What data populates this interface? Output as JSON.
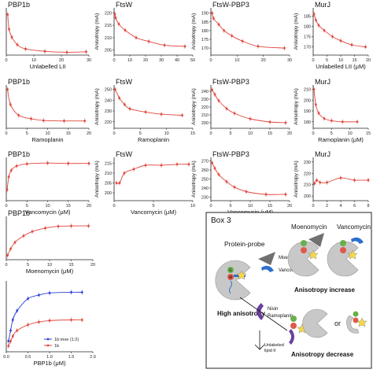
{
  "chart_data": [
    {
      "id": "p1",
      "type": "scatter",
      "title": "PBP1b",
      "xlabel": "Unlabelled LII",
      "ylabel": "",
      "xticks": [
        0,
        10,
        20,
        30
      ],
      "yticks": [],
      "xlim": [
        0,
        30
      ],
      "ylim": [
        0,
        1
      ],
      "series": [
        {
          "color": "#e0463c",
          "x": [
            0.5,
            1,
            2,
            4,
            7,
            14,
            22,
            29
          ],
          "y": [
            0.86,
            0.55,
            0.38,
            0.22,
            0.13,
            0.08,
            0.06,
            0.07
          ],
          "fit": true
        }
      ]
    },
    {
      "id": "p2",
      "type": "scatter",
      "title": "FtsW",
      "xlabel": "",
      "ylabel": "Anisotropy (mA)",
      "xticks": [
        0,
        10,
        20,
        30,
        40,
        50
      ],
      "yticks": [
        205,
        210,
        215,
        220
      ],
      "xlim": [
        0,
        50
      ],
      "ylim": [
        203,
        222
      ],
      "series": [
        {
          "color": "#e0463c",
          "x": [
            0.5,
            1,
            3,
            7,
            14,
            22,
            32,
            45
          ],
          "y": [
            219.5,
            218,
            215.5,
            213,
            210,
            208.5,
            207,
            206.5
          ],
          "fit": true
        }
      ]
    },
    {
      "id": "p3",
      "type": "scatter",
      "title": "FtsW-PBP3",
      "xlabel": "",
      "ylabel": "Anisotropy (mA)",
      "xticks": [
        0,
        10,
        20,
        30
      ],
      "yticks": [
        170,
        175,
        180,
        185,
        190
      ],
      "xlim": [
        0,
        30
      ],
      "ylim": [
        166,
        193
      ],
      "series": [
        {
          "color": "#e0463c",
          "x": [
            0.5,
            1,
            3,
            5,
            8,
            12,
            18,
            28
          ],
          "y": [
            190,
            187,
            183.5,
            180,
            177,
            174,
            171,
            170
          ],
          "fit": true
        }
      ]
    },
    {
      "id": "p4",
      "type": "scatter",
      "title": "MurJ",
      "xlabel": "Unlabelled LII (μM)",
      "ylabel": "Anisotropy (mA)",
      "xticks": [
        0,
        5,
        10,
        15,
        20
      ],
      "yticks": [
        170,
        175,
        180,
        185
      ],
      "xlim": [
        0,
        20
      ],
      "ylim": [
        166,
        189
      ],
      "series": [
        {
          "color": "#e0463c",
          "x": [
            0.3,
            1,
            2,
            4,
            7,
            10,
            14,
            19
          ],
          "y": [
            186,
            183,
            180.5,
            178,
            175,
            173,
            171,
            170
          ],
          "fit": true
        }
      ]
    },
    {
      "id": "p5",
      "type": "scatter",
      "title": "PBP1b",
      "xlabel": "Ramoplanin",
      "ylabel": "",
      "xticks": [
        0,
        5,
        10,
        15,
        20
      ],
      "yticks": [],
      "xlim": [
        0,
        20
      ],
      "ylim": [
        0,
        1
      ],
      "series": [
        {
          "color": "#e0463c",
          "x": [
            0.3,
            1,
            3,
            6,
            9,
            14,
            19
          ],
          "y": [
            0.9,
            0.55,
            0.3,
            0.22,
            0.18,
            0.17,
            0.17
          ],
          "fit": true
        }
      ]
    },
    {
      "id": "p6",
      "type": "scatter",
      "title": "FtsW",
      "xlabel": "Ramoplanin",
      "ylabel": "Anisotropy (mA)",
      "xticks": [
        0,
        5,
        10,
        15
      ],
      "yticks": [
        220,
        230,
        240,
        250
      ],
      "xlim": [
        0,
        15
      ],
      "ylim": [
        214,
        254
      ],
      "series": [
        {
          "color": "#e0463c",
          "x": [
            0.2,
            1,
            2,
            3,
            6,
            9,
            13
          ],
          "y": [
            250,
            242,
            236,
            232,
            229,
            227,
            226
          ],
          "fit": true
        }
      ]
    },
    {
      "id": "p7",
      "type": "scatter",
      "title": "FtsW-PBP3",
      "xlabel": "",
      "ylabel": "Anisotropy (mA)",
      "xticks": [
        0,
        5,
        10,
        15,
        20
      ],
      "yticks": [
        200,
        210,
        220,
        230,
        240
      ],
      "xlim": [
        0,
        20
      ],
      "ylim": [
        193,
        248
      ],
      "series": [
        {
          "color": "#e0463c",
          "x": [
            0.3,
            1,
            2,
            4,
            6,
            10,
            15,
            19
          ],
          "y": [
            242,
            236,
            228,
            218,
            212,
            205,
            201,
            200
          ],
          "fit": true
        }
      ]
    },
    {
      "id": "p8",
      "type": "scatter",
      "title": "MurJ",
      "xlabel": "Ramoplanin (μM)",
      "ylabel": "Anisotropy (mA)",
      "xticks": [
        0,
        5,
        10,
        15
      ],
      "yticks": [
        180,
        190,
        200,
        210
      ],
      "xlim": [
        0,
        15
      ],
      "ylim": [
        174,
        214
      ],
      "series": [
        {
          "color": "#e0463c",
          "x": [
            0.2,
            0.7,
            1.5,
            3,
            5,
            8,
            12
          ],
          "y": [
            210,
            196,
            188,
            183,
            181,
            180,
            180
          ],
          "fit": true
        }
      ]
    },
    {
      "id": "p9",
      "type": "scatter",
      "title": "PBP1b",
      "xlabel": "Vancomycin (μM)",
      "ylabel": "",
      "xticks": [
        0,
        5,
        10,
        15,
        20
      ],
      "yticks": [],
      "xlim": [
        0,
        20
      ],
      "ylim": [
        0,
        1
      ],
      "series": [
        {
          "color": "#e0463c",
          "x": [
            0.2,
            0.6,
            1.2,
            2.5,
            5,
            10,
            15,
            20
          ],
          "y": [
            0.25,
            0.55,
            0.7,
            0.8,
            0.85,
            0.87,
            0.86,
            0.86
          ],
          "fit": true
        }
      ]
    },
    {
      "id": "p10",
      "type": "scatter",
      "title": "FtsW",
      "xlabel": "Vancomycin (μM)",
      "ylabel": "Anisotropy (mA)",
      "xticks": [
        0,
        5,
        10
      ],
      "yticks": [
        200,
        205,
        210,
        215
      ],
      "xlim": [
        0,
        10
      ],
      "ylim": [
        196,
        218
      ],
      "series": [
        {
          "color": "#e0463c",
          "x": [
            0.3,
            0.7,
            1.3,
            2.5,
            4,
            6,
            8,
            9.5
          ],
          "y": [
            205,
            205,
            210,
            212,
            214,
            214,
            214.5,
            214.5
          ],
          "fit": true
        }
      ]
    },
    {
      "id": "p11",
      "type": "scatter",
      "title": "FtsW-PBP3",
      "xlabel": "Vancomycin (μM)",
      "ylabel": "Anisotropy (mA)",
      "xticks": [
        0,
        5,
        10,
        15,
        20
      ],
      "yticks": [
        230,
        240,
        250,
        260,
        270
      ],
      "xlim": [
        0,
        20
      ],
      "ylim": [
        226,
        274
      ],
      "series": [
        {
          "color": "#e0463c",
          "x": [
            0.3,
            1,
            2,
            4,
            6,
            9,
            14,
            19
          ],
          "y": [
            268,
            262,
            255,
            247,
            241,
            236,
            233,
            233
          ],
          "fit": true
        }
      ]
    },
    {
      "id": "p12",
      "type": "line",
      "title": "MurJ",
      "xlabel": "",
      "ylabel": "Anisotropy (mA)",
      "xticks": [
        0,
        2,
        4,
        6,
        8
      ],
      "yticks": [
        200,
        210,
        220,
        230
      ],
      "xlim": [
        0,
        8
      ],
      "ylim": [
        196,
        234
      ],
      "series": [
        {
          "color": "#e0463c",
          "x": [
            0.2,
            0.5,
            1,
            2,
            4,
            6,
            8
          ],
          "y": [
            211,
            214,
            212,
            212,
            216,
            214,
            214
          ],
          "fit": false
        }
      ]
    },
    {
      "id": "p13",
      "type": "scatter",
      "title": "PBP1b",
      "xlabel": "Moenomycin (μM)",
      "ylabel": "",
      "xticks": [
        0,
        5,
        10,
        15,
        20
      ],
      "yticks": [],
      "xlim": [
        0,
        20
      ],
      "ylim": [
        0,
        1
      ],
      "series": [
        {
          "color": "#e0463c",
          "x": [
            0.3,
            1,
            2,
            4,
            6,
            9,
            12,
            15,
            19
          ],
          "y": [
            0.1,
            0.25,
            0.4,
            0.55,
            0.65,
            0.73,
            0.77,
            0.78,
            0.78
          ],
          "fit": true
        }
      ]
    },
    {
      "id": "p14",
      "type": "scatter",
      "title": "",
      "xlabel": "PBP1b (μM)",
      "ylabel": "",
      "xticks": [
        0,
        0.5,
        1,
        1.5,
        2
      ],
      "xticklabels": [
        "0.0",
        "0.5",
        "1.0",
        "1.5",
        "2.0"
      ],
      "yticks": [],
      "xlim": [
        0,
        2
      ],
      "ylim": [
        0,
        1
      ],
      "legend": "bottom-right",
      "series": [
        {
          "name": "1b:moe (1:2)",
          "color": "#2b3fd6",
          "x": [
            0.05,
            0.1,
            0.15,
            0.25,
            0.5,
            0.75,
            1,
            1.5,
            1.75
          ],
          "y": [
            0.15,
            0.3,
            0.45,
            0.58,
            0.75,
            0.8,
            0.83,
            0.84,
            0.84
          ],
          "fit": true
        },
        {
          "name": "1b",
          "color": "#e0463c",
          "x": [
            0.05,
            0.1,
            0.15,
            0.25,
            0.5,
            0.75,
            1,
            1.5,
            1.75
          ],
          "y": [
            0.08,
            0.15,
            0.22,
            0.3,
            0.38,
            0.42,
            0.44,
            0.45,
            0.45
          ],
          "fit": true
        }
      ]
    }
  ],
  "box3": {
    "title": "Box 3",
    "probe_label": "Protein-probe",
    "moenomycin_label": "Moenomycin",
    "vancomycin_label": "Vancomycin",
    "moeno_header": "Moenomycin",
    "vanco_header": "Vancomycin",
    "increase_label": "Anisotropy increase",
    "high_label": "High anisotropy",
    "nisin_label": "Nisin",
    "ramoplanin_label": "Ramoplanin",
    "unlabeled_label": "Unlabeled",
    "lipid_label": "lipid II",
    "or_label": "or",
    "decrease_label": "Anisotropy decrease",
    "g_letter": "G",
    "m_letter": "M",
    "colors": {
      "grey": "#c8c8c8",
      "green": "#6ab04c",
      "red": "#e05a4a",
      "blue": "#2d6fcc",
      "purple": "#6a3fa0",
      "triangle": "#707070",
      "star": "#f5d84a"
    }
  }
}
